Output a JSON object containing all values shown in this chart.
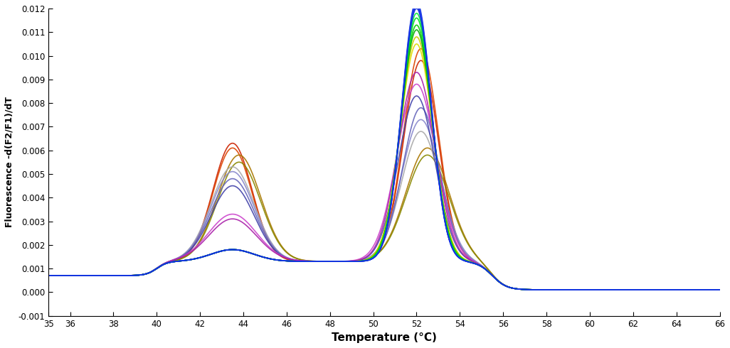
{
  "title": "",
  "xlabel": "Temperature (°C)",
  "ylabel": "Fluorescence -d(F2/F1)/dT",
  "xlim": [
    35,
    66
  ],
  "ylim": [
    -0.001,
    0.012
  ],
  "xticks": [
    35,
    36,
    38,
    40,
    42,
    44,
    46,
    48,
    50,
    52,
    54,
    56,
    58,
    60,
    62,
    64,
    66
  ],
  "yticks": [
    -0.001,
    0.0,
    0.001,
    0.002,
    0.003,
    0.004,
    0.005,
    0.006,
    0.007,
    0.008,
    0.009,
    0.01,
    0.011,
    0.012
  ],
  "background_color": "#ffffff",
  "curves": [
    {
      "color": "#cc2200",
      "p1h": 0.005,
      "p1c": 43.5,
      "p1w": 0.9,
      "p2h": 0.0085,
      "p2c": 52.2,
      "p2w": 0.8
    },
    {
      "color": "#dd4400",
      "p1h": 0.0048,
      "p1c": 43.5,
      "p1w": 0.9,
      "p2h": 0.009,
      "p2c": 52.2,
      "p2w": 0.8
    },
    {
      "color": "#aa7700",
      "p1h": 0.0045,
      "p1c": 43.8,
      "p1w": 1.0,
      "p2h": 0.0048,
      "p2c": 52.5,
      "p2w": 1.0
    },
    {
      "color": "#888800",
      "p1h": 0.0042,
      "p1c": 43.8,
      "p1w": 1.0,
      "p2h": 0.0045,
      "p2c": 52.5,
      "p2w": 1.0
    },
    {
      "color": "#aaaaaa",
      "p1h": 0.004,
      "p1c": 43.5,
      "p1w": 1.0,
      "p2h": 0.0055,
      "p2c": 52.2,
      "p2w": 0.9
    },
    {
      "color": "#8888cc",
      "p1h": 0.0038,
      "p1c": 43.5,
      "p1w": 1.0,
      "p2h": 0.006,
      "p2c": 52.2,
      "p2w": 0.9
    },
    {
      "color": "#6666bb",
      "p1h": 0.0035,
      "p1c": 43.5,
      "p1w": 1.0,
      "p2h": 0.0065,
      "p2c": 52.2,
      "p2w": 0.85
    },
    {
      "color": "#4444aa",
      "p1h": 0.0032,
      "p1c": 43.5,
      "p1w": 1.0,
      "p2h": 0.007,
      "p2c": 52.0,
      "p2w": 0.85
    },
    {
      "color": "#cc44cc",
      "p1h": 0.002,
      "p1c": 43.5,
      "p1w": 1.1,
      "p2h": 0.0075,
      "p2c": 52.0,
      "p2w": 0.9
    },
    {
      "color": "#aa22aa",
      "p1h": 0.0018,
      "p1c": 43.5,
      "p1w": 1.1,
      "p2h": 0.008,
      "p2c": 52.0,
      "p2w": 0.85
    },
    {
      "color": "#dddd00",
      "p1h": 0.0005,
      "p1c": 43.5,
      "p1w": 1.0,
      "p2h": 0.0092,
      "p2c": 52.0,
      "p2w": 0.75
    },
    {
      "color": "#cccc00",
      "p1h": 0.0005,
      "p1c": 43.5,
      "p1w": 1.0,
      "p2h": 0.0095,
      "p2c": 52.0,
      "p2w": 0.75
    },
    {
      "color": "#00aa00",
      "p1h": 0.0005,
      "p1c": 43.5,
      "p1w": 1.0,
      "p2h": 0.0098,
      "p2c": 52.0,
      "p2w": 0.72
    },
    {
      "color": "#00cc00",
      "p1h": 0.0005,
      "p1c": 43.5,
      "p1w": 1.0,
      "p2h": 0.01,
      "p2c": 52.0,
      "p2w": 0.72
    },
    {
      "color": "#00dd22",
      "p1h": 0.0005,
      "p1c": 43.5,
      "p1w": 1.0,
      "p2h": 0.0103,
      "p2c": 52.0,
      "p2w": 0.7
    },
    {
      "color": "#00ee33",
      "p1h": 0.0005,
      "p1c": 43.5,
      "p1w": 1.0,
      "p2h": 0.0105,
      "p2c": 52.0,
      "p2w": 0.7
    },
    {
      "color": "#0000cc",
      "p1h": 0.0005,
      "p1c": 43.5,
      "p1w": 1.0,
      "p2h": 0.0108,
      "p2c": 52.0,
      "p2w": 0.68
    },
    {
      "color": "#0022dd",
      "p1h": 0.0005,
      "p1c": 43.5,
      "p1w": 1.0,
      "p2h": 0.011,
      "p2c": 52.0,
      "p2w": 0.68
    },
    {
      "color": "#2244ee",
      "p1h": 0.0005,
      "p1c": 43.5,
      "p1w": 1.0,
      "p2h": 0.0109,
      "p2c": 52.0,
      "p2w": 0.68
    },
    {
      "color": "#1133dd",
      "p1h": 0.0005,
      "p1c": 43.5,
      "p1w": 1.0,
      "p2h": 0.0107,
      "p2c": 52.0,
      "p2w": 0.68
    }
  ]
}
